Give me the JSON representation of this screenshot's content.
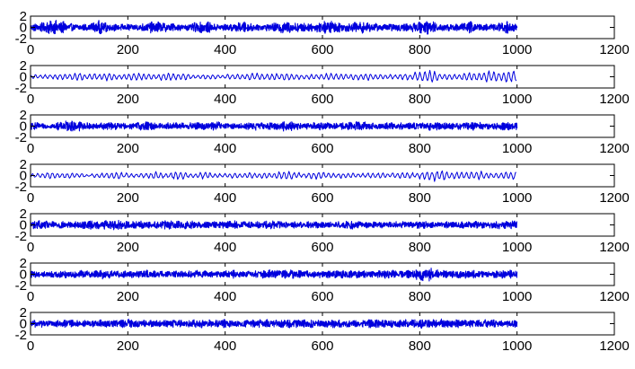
{
  "chart_data": [
    {
      "type": "line",
      "xlim": [
        0,
        1200
      ],
      "ylim": [
        -2,
        2
      ],
      "xticks": [
        0,
        200,
        400,
        600,
        800,
        1000,
        1200
      ],
      "yticks": [
        2,
        0,
        -2
      ],
      "xtick_labels": [
        "0",
        "200",
        "400",
        "600",
        "800",
        "1000",
        "1200"
      ],
      "ytick_labels": [
        "2",
        "0",
        "-2"
      ],
      "grid": false,
      "series": [
        {
          "color": "#0000dd",
          "style": "dense",
          "x": [
            0,
            20,
            40,
            60,
            80,
            100,
            120,
            140,
            160,
            180,
            200,
            220,
            240,
            260,
            280,
            300,
            320,
            340,
            360,
            380,
            400,
            420,
            440,
            460,
            480,
            500,
            520,
            540,
            560,
            580,
            600,
            620,
            640,
            660,
            680,
            700,
            720,
            740,
            760,
            780,
            800,
            820,
            840,
            860,
            880,
            900,
            920,
            940,
            960,
            980,
            1000
          ],
          "amplitude": [
            0.5,
            0.6,
            1,
            1,
            0.55,
            0.5,
            0.45,
            1,
            0.6,
            0.45,
            0.5,
            0.45,
            0.7,
            0.9,
            0.6,
            0.5,
            0.4,
            0.7,
            0.85,
            0.5,
            0.5,
            0.6,
            0.8,
            0.5,
            0.45,
            0.6,
            0.9,
            0.7,
            0.65,
            0.6,
            0.85,
            1,
            0.6,
            0.65,
            0.85,
            0.6,
            0.5,
            0.5,
            0.6,
            0.55,
            0.8,
            1,
            0.55,
            0.55,
            0.5,
            0.9,
            0.6,
            0.45,
            0.6,
            0.95,
            0.5
          ]
        }
      ]
    },
    {
      "type": "line",
      "xlim": [
        0,
        1200
      ],
      "ylim": [
        -2,
        2
      ],
      "xticks": [
        0,
        200,
        400,
        600,
        800,
        1000,
        1200
      ],
      "yticks": [
        2,
        0,
        -2
      ],
      "xtick_labels": [
        "0",
        "200",
        "400",
        "600",
        "800",
        "1000",
        "1200"
      ],
      "ytick_labels": [
        "2",
        "0",
        "-2"
      ],
      "grid": false,
      "series": [
        {
          "color": "#0000dd",
          "style": "sparse",
          "x": [
            0,
            20,
            40,
            60,
            80,
            100,
            120,
            140,
            160,
            180,
            200,
            220,
            240,
            260,
            280,
            300,
            320,
            340,
            360,
            380,
            400,
            420,
            440,
            460,
            480,
            500,
            520,
            540,
            560,
            580,
            600,
            620,
            640,
            660,
            680,
            700,
            720,
            740,
            760,
            780,
            800,
            820,
            840,
            860,
            880,
            900,
            920,
            940,
            960,
            980,
            1000
          ],
          "amplitude": [
            0.3,
            0.3,
            0.4,
            0.45,
            0.5,
            0.6,
            0.45,
            0.5,
            0.6,
            0.4,
            0.45,
            0.6,
            0.45,
            0.4,
            0.7,
            0.5,
            0.5,
            0.3,
            0.4,
            0.35,
            0.3,
            0.45,
            0.5,
            0.6,
            0.4,
            0.5,
            0.7,
            0.45,
            0.4,
            0.45,
            0.5,
            0.6,
            0.45,
            0.4,
            0.6,
            0.55,
            0.4,
            0.35,
            0.4,
            0.45,
            0.9,
            1,
            0.6,
            0.5,
            0.45,
            0.7,
            0.6,
            0.8,
            0.9,
            1,
            0.8
          ]
        }
      ]
    },
    {
      "type": "line",
      "xlim": [
        0,
        1200
      ],
      "ylim": [
        -2,
        2
      ],
      "xticks": [
        0,
        200,
        400,
        600,
        800,
        1000,
        1200
      ],
      "yticks": [
        2,
        0,
        -2
      ],
      "xtick_labels": [
        "0",
        "200",
        "400",
        "600",
        "800",
        "1000",
        "1200"
      ],
      "ytick_labels": [
        "2",
        "0",
        "-2"
      ],
      "grid": false,
      "series": [
        {
          "color": "#0000dd",
          "style": "dense",
          "x": [
            0,
            20,
            40,
            60,
            80,
            100,
            120,
            140,
            160,
            180,
            200,
            220,
            240,
            260,
            280,
            300,
            320,
            340,
            360,
            380,
            400,
            420,
            440,
            460,
            480,
            500,
            520,
            540,
            560,
            580,
            600,
            620,
            640,
            660,
            680,
            700,
            720,
            740,
            760,
            780,
            800,
            820,
            840,
            860,
            880,
            900,
            920,
            940,
            960,
            980,
            1000
          ],
          "amplitude": [
            0.7,
            0.4,
            0.3,
            0.6,
            0.8,
            0.7,
            0.5,
            0.4,
            0.6,
            0.5,
            0.35,
            0.6,
            0.7,
            0.4,
            0.5,
            0.55,
            0.4,
            0.6,
            0.5,
            0.7,
            0.4,
            0.35,
            0.5,
            0.6,
            0.45,
            0.55,
            0.7,
            0.6,
            0.4,
            0.5,
            0.55,
            0.4,
            0.5,
            0.6,
            0.7,
            0.5,
            0.4,
            0.6,
            0.45,
            0.5,
            0.5,
            0.6,
            0.55,
            0.45,
            0.5,
            0.55,
            0.6,
            0.45,
            0.5,
            0.6,
            0.5
          ]
        }
      ]
    },
    {
      "type": "line",
      "xlim": [
        0,
        1200
      ],
      "ylim": [
        -2,
        2
      ],
      "xticks": [
        0,
        200,
        400,
        600,
        800,
        1000,
        1200
      ],
      "yticks": [
        2,
        0,
        -2
      ],
      "xtick_labels": [
        "0",
        "200",
        "400",
        "600",
        "800",
        "1000",
        "1200"
      ],
      "ytick_labels": [
        "2",
        "0",
        "-2"
      ],
      "grid": false,
      "series": [
        {
          "color": "#0000dd",
          "style": "sparse",
          "x": [
            0,
            20,
            40,
            60,
            80,
            100,
            120,
            140,
            160,
            180,
            200,
            220,
            240,
            260,
            280,
            300,
            320,
            340,
            360,
            380,
            400,
            420,
            440,
            460,
            480,
            500,
            520,
            540,
            560,
            580,
            600,
            620,
            640,
            660,
            680,
            700,
            720,
            740,
            760,
            780,
            800,
            820,
            840,
            860,
            880,
            900,
            920,
            940,
            960,
            980,
            1000
          ],
          "amplitude": [
            0.25,
            0.3,
            0.6,
            0.3,
            0.45,
            0.3,
            0.25,
            0.3,
            0.45,
            0.6,
            0.3,
            0.3,
            0.4,
            0.6,
            0.35,
            0.7,
            0.45,
            0.3,
            0.6,
            0.3,
            0.3,
            0.4,
            0.35,
            0.5,
            0.4,
            0.45,
            0.7,
            0.6,
            0.3,
            0.6,
            0.5,
            0.35,
            0.4,
            0.35,
            0.3,
            0.4,
            0.45,
            0.3,
            0.6,
            0.45,
            0.5,
            0.8,
            1,
            0.5,
            0.6,
            0.5,
            0.7,
            0.4,
            0.5,
            0.6,
            0.8
          ]
        }
      ]
    },
    {
      "type": "line",
      "xlim": [
        0,
        1200
      ],
      "ylim": [
        -2,
        2
      ],
      "xticks": [
        0,
        200,
        400,
        600,
        800,
        1000,
        1200
      ],
      "yticks": [
        2,
        0,
        -2
      ],
      "xtick_labels": [
        "0",
        "200",
        "400",
        "600",
        "800",
        "1000",
        "1200"
      ],
      "ytick_labels": [
        "2",
        "0",
        "-2"
      ],
      "grid": false,
      "series": [
        {
          "color": "#0000dd",
          "style": "dense",
          "x": [
            0,
            20,
            40,
            60,
            80,
            100,
            120,
            140,
            160,
            180,
            200,
            220,
            240,
            260,
            280,
            300,
            320,
            340,
            360,
            380,
            400,
            420,
            440,
            460,
            480,
            500,
            520,
            540,
            560,
            580,
            600,
            620,
            640,
            660,
            680,
            700,
            720,
            740,
            760,
            780,
            800,
            820,
            840,
            860,
            880,
            900,
            920,
            940,
            960,
            980,
            1000
          ],
          "amplitude": [
            0.7,
            0.6,
            0.5,
            0.6,
            0.45,
            0.5,
            0.6,
            0.55,
            0.7,
            0.8,
            0.5,
            0.6,
            0.45,
            0.5,
            0.7,
            0.55,
            0.6,
            0.5,
            0.5,
            0.45,
            0.55,
            0.6,
            0.5,
            0.45,
            0.55,
            0.6,
            0.45,
            0.5,
            0.4,
            0.5,
            0.45,
            0.4,
            0.5,
            0.6,
            0.45,
            0.4,
            0.5,
            0.4,
            0.5,
            0.45,
            0.55,
            0.45,
            0.4,
            0.5,
            0.45,
            0.55,
            0.5,
            0.4,
            0.6,
            0.5,
            0.7
          ]
        }
      ]
    },
    {
      "type": "line",
      "xlim": [
        0,
        1200
      ],
      "ylim": [
        -2,
        2
      ],
      "xticks": [
        0,
        200,
        400,
        600,
        800,
        1000,
        1200
      ],
      "yticks": [
        2,
        0,
        -2
      ],
      "xtick_labels": [
        "0",
        "200",
        "400",
        "600",
        "800",
        "1000",
        "1200"
      ],
      "ytick_labels": [
        "2",
        "0",
        "-2"
      ],
      "grid": false,
      "series": [
        {
          "color": "#0000dd",
          "style": "dense",
          "x": [
            0,
            20,
            40,
            60,
            80,
            100,
            120,
            140,
            160,
            180,
            200,
            220,
            240,
            260,
            280,
            300,
            320,
            340,
            360,
            380,
            400,
            420,
            440,
            460,
            480,
            500,
            520,
            540,
            560,
            580,
            600,
            620,
            640,
            660,
            680,
            700,
            720,
            740,
            760,
            780,
            800,
            820,
            840,
            860,
            880,
            900,
            920,
            940,
            960,
            980,
            1000
          ],
          "amplitude": [
            0.55,
            0.45,
            0.4,
            0.6,
            0.5,
            0.55,
            0.5,
            0.7,
            0.6,
            0.5,
            0.45,
            0.55,
            0.6,
            0.5,
            0.4,
            0.5,
            0.45,
            0.55,
            0.5,
            0.45,
            0.55,
            0.6,
            0.4,
            0.5,
            0.55,
            0.7,
            0.6,
            0.65,
            0.5,
            0.45,
            0.55,
            0.5,
            0.6,
            0.55,
            0.5,
            0.45,
            0.6,
            0.65,
            0.5,
            0.55,
            0.9,
            1,
            0.6,
            0.5,
            0.55,
            0.6,
            0.5,
            0.45,
            0.55,
            0.6,
            0.5
          ]
        }
      ]
    },
    {
      "type": "line",
      "xlim": [
        0,
        1200
      ],
      "ylim": [
        -2,
        2
      ],
      "xticks": [
        0,
        200,
        400,
        600,
        800,
        1000,
        1200
      ],
      "yticks": [
        2,
        0,
        -2
      ],
      "xtick_labels": [
        "0",
        "200",
        "400",
        "600",
        "800",
        "1000",
        "1200"
      ],
      "ytick_labels": [
        "2",
        "0",
        "-2"
      ],
      "grid": false,
      "series": [
        {
          "color": "#0000dd",
          "style": "dense",
          "x": [
            0,
            20,
            40,
            60,
            80,
            100,
            120,
            140,
            160,
            180,
            200,
            220,
            240,
            260,
            280,
            300,
            320,
            340,
            360,
            380,
            400,
            420,
            440,
            460,
            480,
            500,
            520,
            540,
            560,
            580,
            600,
            620,
            640,
            660,
            680,
            700,
            720,
            740,
            760,
            780,
            800,
            820,
            840,
            860,
            880,
            900,
            920,
            940,
            960,
            980,
            1000
          ],
          "amplitude": [
            0.5,
            0.55,
            0.4,
            0.5,
            0.6,
            0.45,
            0.5,
            0.55,
            0.6,
            0.5,
            0.7,
            0.55,
            0.45,
            0.5,
            0.55,
            0.5,
            0.45,
            0.6,
            0.55,
            0.5,
            0.6,
            0.45,
            0.5,
            0.55,
            0.6,
            0.5,
            0.6,
            0.65,
            0.55,
            0.6,
            0.5,
            0.6,
            0.55,
            0.45,
            0.5,
            0.6,
            0.55,
            0.5,
            0.6,
            0.55,
            0.65,
            0.6,
            0.7,
            0.55,
            0.6,
            0.5,
            0.55,
            0.6,
            0.5,
            0.45,
            0.6
          ]
        }
      ]
    }
  ]
}
